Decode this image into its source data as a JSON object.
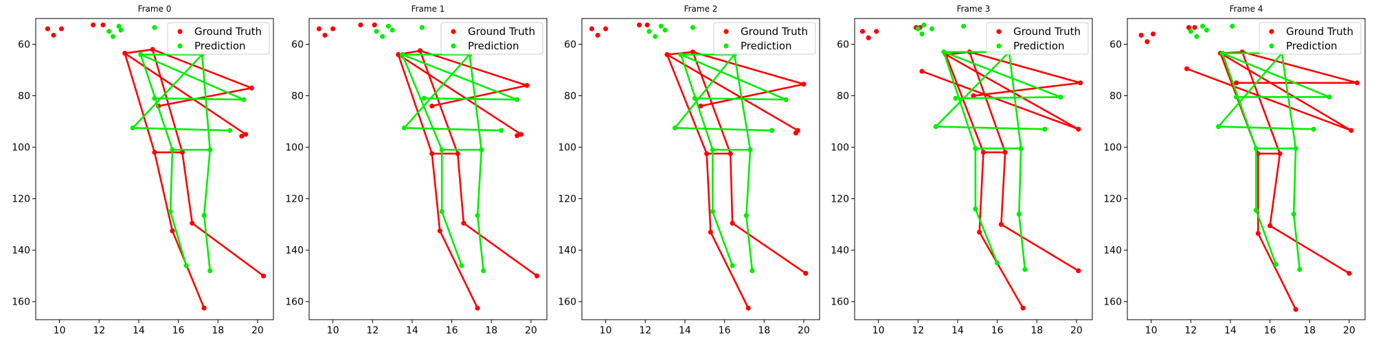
{
  "colors": {
    "ground_truth": "#ff0000",
    "prediction": "#00ee00",
    "axes": "#000000",
    "legend_border": "#cccccc"
  },
  "chart_data": {
    "type": "scatter",
    "shared": {
      "xlim": [
        8.8,
        20.8
      ],
      "ylim": [
        167,
        50
      ],
      "y_inverted": true,
      "xticks": [
        10,
        12,
        14,
        16,
        18,
        20
      ],
      "yticks": [
        60,
        80,
        100,
        120,
        140,
        160
      ],
      "legend": [
        "Ground Truth",
        "Prediction"
      ],
      "legend_position": "top-right",
      "grid": false,
      "xlabel": "",
      "ylabel": ""
    },
    "frames": [
      {
        "title": "Frame 0",
        "series": [
          {
            "name": "Ground Truth",
            "points": [
              [
                9.4,
                54
              ],
              [
                9.7,
                56.5
              ],
              [
                10.1,
                54
              ],
              [
                11.7,
                52.5
              ],
              [
                12.2,
                52.5
              ],
              [
                14.7,
                62
              ],
              [
                13.3,
                63.5
              ],
              [
                19.7,
                77
              ],
              [
                15.0,
                84
              ],
              [
                19.4,
                95
              ],
              [
                19.2,
                95.7
              ],
              [
                16.2,
                102
              ],
              [
                14.8,
                102
              ],
              [
                16.7,
                129.5
              ],
              [
                15.7,
                132.5
              ],
              [
                20.3,
                150
              ],
              [
                17.3,
                162.5
              ]
            ]
          },
          {
            "name": "Prediction",
            "points": [
              [
                12.5,
                55
              ],
              [
                12.7,
                57
              ],
              [
                13.0,
                53
              ],
              [
                13.1,
                54.5
              ],
              [
                14.8,
                53.5
              ],
              [
                14.1,
                64
              ],
              [
                17.2,
                64
              ],
              [
                19.3,
                81.5
              ],
              [
                14.8,
                81
              ],
              [
                13.7,
                92.5
              ],
              [
                18.6,
                93.5
              ],
              [
                15.7,
                101
              ],
              [
                17.6,
                101
              ],
              [
                15.6,
                125
              ],
              [
                17.3,
                126.5
              ],
              [
                16.4,
                146
              ],
              [
                17.6,
                148
              ]
            ]
          }
        ]
      },
      {
        "title": "Frame 1",
        "series": [
          {
            "name": "Ground Truth",
            "points": [
              [
                9.3,
                54
              ],
              [
                9.6,
                56.5
              ],
              [
                10.0,
                54
              ],
              [
                11.4,
                52.5
              ],
              [
                12.1,
                52.5
              ],
              [
                14.4,
                62.5
              ],
              [
                13.3,
                64
              ],
              [
                19.8,
                76
              ],
              [
                15.0,
                84
              ],
              [
                19.5,
                95
              ],
              [
                19.3,
                95.5
              ],
              [
                16.3,
                102.5
              ],
              [
                15.0,
                102.5
              ],
              [
                16.6,
                129.5
              ],
              [
                15.4,
                132.5
              ],
              [
                20.3,
                150
              ],
              [
                17.3,
                162.5
              ]
            ]
          },
          {
            "name": "Prediction",
            "points": [
              [
                12.2,
                55
              ],
              [
                12.5,
                57
              ],
              [
                12.8,
                53
              ],
              [
                13.0,
                54.5
              ],
              [
                14.5,
                53.5
              ],
              [
                13.5,
                64
              ],
              [
                16.9,
                64
              ],
              [
                19.3,
                81.5
              ],
              [
                14.6,
                81
              ],
              [
                13.6,
                92.5
              ],
              [
                18.5,
                93.5
              ],
              [
                15.5,
                101
              ],
              [
                17.5,
                101
              ],
              [
                15.5,
                125
              ],
              [
                17.3,
                126.5
              ],
              [
                16.5,
                146
              ],
              [
                17.6,
                148
              ]
            ]
          }
        ]
      },
      {
        "title": "Frame 2",
        "series": [
          {
            "name": "Ground Truth",
            "points": [
              [
                9.3,
                54
              ],
              [
                9.6,
                56.5
              ],
              [
                10.0,
                54
              ],
              [
                11.7,
                52.5
              ],
              [
                12.1,
                52.5
              ],
              [
                14.4,
                63
              ],
              [
                13.1,
                64
              ],
              [
                20.0,
                75.5
              ],
              [
                14.8,
                84
              ],
              [
                19.7,
                93.5
              ],
              [
                19.6,
                94.5
              ],
              [
                16.3,
                102.5
              ],
              [
                15.1,
                102.5
              ],
              [
                16.4,
                129.5
              ],
              [
                15.3,
                133
              ],
              [
                20.1,
                149
              ],
              [
                17.2,
                162.5
              ]
            ]
          },
          {
            "name": "Prediction",
            "points": [
              [
                12.2,
                55
              ],
              [
                12.5,
                57
              ],
              [
                12.8,
                53
              ],
              [
                13.0,
                54.5
              ],
              [
                14.4,
                53.5
              ],
              [
                13.8,
                64
              ],
              [
                16.5,
                64
              ],
              [
                19.1,
                81.5
              ],
              [
                14.5,
                81
              ],
              [
                13.5,
                92.5
              ],
              [
                18.4,
                93.5
              ],
              [
                15.4,
                101
              ],
              [
                17.3,
                101
              ],
              [
                15.4,
                125
              ],
              [
                17.1,
                126.5
              ],
              [
                16.4,
                146
              ],
              [
                17.4,
                148
              ]
            ]
          }
        ]
      },
      {
        "title": "Frame 3",
        "series": [
          {
            "name": "Ground Truth",
            "points": [
              [
                9.2,
                55
              ],
              [
                9.5,
                57.5
              ],
              [
                9.9,
                55
              ],
              [
                11.9,
                53.5
              ],
              [
                12.1,
                53.5
              ],
              [
                14.6,
                63
              ],
              [
                13.4,
                64
              ],
              [
                20.2,
                75
              ],
              [
                14.8,
                80
              ],
              [
                20.1,
                93
              ],
              [
                12.2,
                70.5
              ],
              [
                16.4,
                102
              ],
              [
                15.3,
                102
              ],
              [
                16.2,
                130
              ],
              [
                15.1,
                133
              ],
              [
                20.1,
                148
              ],
              [
                17.3,
                162.5
              ]
            ]
          },
          {
            "name": "Prediction",
            "points": [
              [
                12.0,
                54
              ],
              [
                12.2,
                56
              ],
              [
                12.3,
                52.5
              ],
              [
                12.7,
                54
              ],
              [
                14.3,
                53
              ],
              [
                13.3,
                63
              ],
              [
                16.6,
                63
              ],
              [
                19.2,
                80.5
              ],
              [
                13.9,
                81
              ],
              [
                12.9,
                92
              ],
              [
                18.4,
                93
              ],
              [
                14.9,
                100.5
              ],
              [
                17.2,
                100.5
              ],
              [
                14.9,
                124
              ],
              [
                17.1,
                126
              ],
              [
                16.0,
                145
              ],
              [
                17.4,
                147.5
              ]
            ]
          }
        ]
      },
      {
        "title": "Frame 4",
        "series": [
          {
            "name": "Ground Truth",
            "points": [
              [
                9.5,
                56.5
              ],
              [
                9.8,
                59
              ],
              [
                10.1,
                56
              ],
              [
                11.9,
                53.5
              ],
              [
                12.2,
                53.5
              ],
              [
                14.6,
                63
              ],
              [
                13.5,
                63.5
              ],
              [
                20.4,
                75
              ],
              [
                14.3,
                75
              ],
              [
                20.1,
                93.5
              ],
              [
                11.8,
                69.5
              ],
              [
                16.5,
                102.5
              ],
              [
                15.4,
                102.5
              ],
              [
                16.0,
                130.5
              ],
              [
                15.4,
                133.5
              ],
              [
                20.0,
                149
              ],
              [
                17.3,
                163
              ]
            ]
          },
          {
            "name": "Prediction",
            "points": [
              [
                12.0,
                55
              ],
              [
                12.3,
                57
              ],
              [
                12.6,
                53
              ],
              [
                12.8,
                54.5
              ],
              [
                14.1,
                53
              ],
              [
                13.6,
                63.5
              ],
              [
                16.6,
                63.5
              ],
              [
                19.0,
                80.5
              ],
              [
                14.3,
                80.5
              ],
              [
                13.4,
                92
              ],
              [
                18.2,
                93
              ],
              [
                15.3,
                100.5
              ],
              [
                17.3,
                100.5
              ],
              [
                15.3,
                124.5
              ],
              [
                17.2,
                126
              ],
              [
                16.3,
                145.5
              ],
              [
                17.5,
                147.5
              ]
            ]
          }
        ]
      }
    ]
  }
}
